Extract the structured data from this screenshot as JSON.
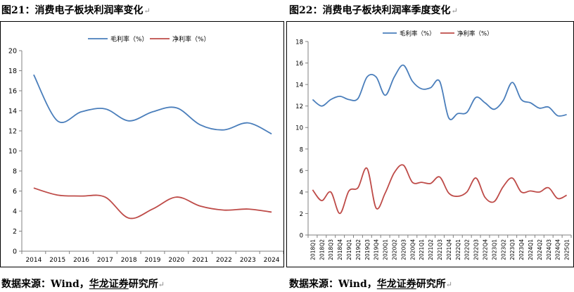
{
  "colors": {
    "gross": "#4a7ebb",
    "net": "#be4b48",
    "axis": "#808080"
  },
  "paragraph_mark": "↵",
  "chart_data": [
    {
      "type": "line",
      "title": "图21：消费电子板块利润率变化",
      "categories": [
        "2014",
        "2015",
        "2016",
        "2017",
        "2018",
        "2019",
        "2020",
        "2021",
        "2022",
        "2023",
        "2024"
      ],
      "series": [
        {
          "name": "毛利率（%）",
          "values": [
            17.6,
            13.0,
            13.9,
            14.2,
            13.0,
            13.9,
            14.3,
            12.6,
            12.1,
            12.8,
            11.7
          ]
        },
        {
          "name": "净利率（%）",
          "values": [
            6.3,
            5.6,
            5.5,
            5.4,
            3.3,
            4.2,
            5.4,
            4.5,
            4.1,
            4.2,
            3.9
          ]
        }
      ],
      "ylim": [
        0,
        20
      ],
      "yticks": [
        0,
        2,
        4,
        6,
        8,
        10,
        12,
        14,
        16,
        18,
        20
      ],
      "legend": "top-center",
      "grid": false
    },
    {
      "type": "line",
      "title": "图22：消费电子板块利润率季度变化",
      "categories": [
        "2018Q1",
        "2018Q2",
        "2018Q3",
        "2018Q4",
        "2019Q1",
        "2019Q2",
        "2019Q3",
        "2019Q4",
        "2020Q1",
        "2020Q2",
        "2020Q3",
        "2020Q4",
        "2021Q1",
        "2021Q2",
        "2021Q3",
        "2021Q4",
        "2022Q1",
        "2022Q2",
        "2022Q3",
        "2022Q4",
        "2023Q1",
        "2023Q2",
        "2023Q3",
        "2023Q4",
        "2024Q1",
        "2024Q2",
        "2024Q3",
        "2024Q4",
        "2025Q1"
      ],
      "series": [
        {
          "name": "毛利率（%）",
          "values": [
            12.6,
            12.0,
            12.6,
            12.9,
            12.6,
            12.7,
            14.7,
            14.7,
            13.0,
            14.7,
            15.8,
            14.3,
            13.6,
            13.7,
            14.3,
            10.9,
            11.3,
            11.4,
            12.8,
            12.3,
            11.7,
            12.5,
            14.2,
            12.6,
            12.3,
            11.8,
            11.9,
            11.1,
            11.2
          ]
        },
        {
          "name": "净利率（%）",
          "values": [
            4.2,
            3.2,
            4.0,
            2.0,
            4.1,
            4.4,
            6.2,
            2.5,
            3.9,
            5.8,
            6.5,
            4.9,
            4.9,
            4.8,
            5.4,
            3.9,
            3.6,
            4.0,
            5.3,
            3.5,
            3.1,
            4.5,
            5.3,
            4.0,
            4.1,
            4.0,
            4.4,
            3.4,
            3.7
          ]
        }
      ],
      "ylim": [
        0,
        18
      ],
      "yticks": [
        0,
        2,
        4,
        6,
        8,
        10,
        12,
        14,
        16,
        18
      ],
      "legend": "top-center",
      "grid": false
    }
  ],
  "source": {
    "prefix": "数据来源：Wind，",
    "brand": "华龙证券",
    "suffix": "研究所"
  }
}
